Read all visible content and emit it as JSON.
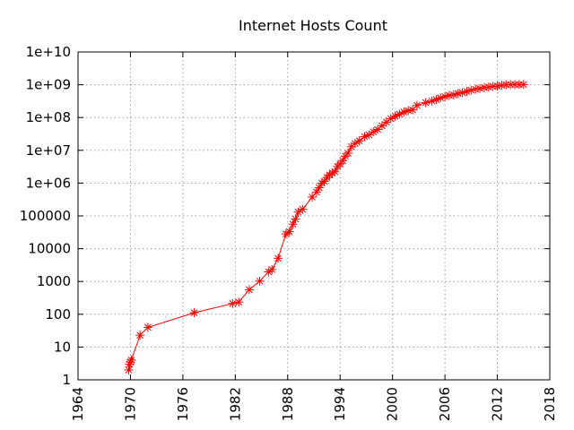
{
  "chart_data": {
    "type": "line",
    "title": "Internet Hosts Count",
    "xlabel": "",
    "ylabel": "",
    "x_scale": "linear",
    "y_scale": "log",
    "xlim": [
      1964,
      2018
    ],
    "ylim": [
      1,
      10000000000
    ],
    "x_ticks": [
      "1964",
      "1970",
      "1976",
      "1982",
      "1988",
      "1994",
      "2000",
      "2006",
      "2012",
      "2018"
    ],
    "y_ticks": [
      "1",
      "10",
      "100",
      "1000",
      "10000",
      "100000",
      "1e+06",
      "1e+07",
      "1e+08",
      "1e+09",
      "1e+10"
    ],
    "grid": true,
    "legend": "none",
    "marker": "asterisk",
    "color": "#ff0000",
    "series": [
      {
        "x": [
          1969.8,
          1969.9,
          1970.0,
          1970.1,
          1971.1,
          1972.0,
          1977.3,
          1981.7,
          1982.4,
          1983.6,
          1984.8,
          1985.8,
          1986.2,
          1986.9,
          1987.8,
          1988.2,
          1988.6,
          1988.9,
          1989.2,
          1989.7,
          1990.8,
          1991.3,
          1991.6,
          1991.9,
          1992.2,
          1992.5,
          1992.8,
          1993.1,
          1993.4,
          1993.7,
          1994.0,
          1994.3,
          1994.6,
          1994.9,
          1995.3,
          1995.7,
          1996.2,
          1996.8,
          1997.3,
          1997.8,
          1998.3,
          1998.8,
          1999.3,
          1999.8,
          2000.3,
          2000.8,
          2001.3,
          2001.8,
          2002.3,
          2002.8,
          2003.8,
          2004.5,
          2005.0,
          2005.5,
          2006.0,
          2006.5,
          2007.0,
          2007.5,
          2008.0,
          2008.5,
          2009.0,
          2009.5,
          2010.0,
          2010.5,
          2011.0,
          2011.5,
          2012.0,
          2012.5,
          2013.0,
          2013.5,
          2014.0,
          2014.5,
          2015.0
        ],
        "y": [
          2,
          3,
          3.5,
          4,
          23,
          40,
          111,
          213,
          235,
          562,
          1024,
          1961,
          2308,
          5089,
          28174,
          33000,
          56000,
          80000,
          130000,
          159000,
          376000,
          535000,
          727000,
          992000,
          1136000,
          1486000,
          1776000,
          2056000,
          2217000,
          3212000,
          3864000,
          4852000,
          6642000,
          8200000,
          12881000,
          16146000,
          19540000,
          26053000,
          29670000,
          36739000,
          43230000,
          56218000,
          72398000,
          93047000,
          109574000,
          125888000,
          147344000,
          162128000,
          171638000,
          233101000,
          285139000,
          317646000,
          353284000,
          394991000,
          439286000,
          472000000,
          489774000,
          541677000,
          570938000,
          625226000,
          681064000,
          732740000,
          768913000,
          818374000,
          849869000,
          888239000,
          908585000,
          963518000,
          996230000,
          1010000000,
          1012000000,
          1015000000,
          1016000000
        ]
      }
    ]
  }
}
